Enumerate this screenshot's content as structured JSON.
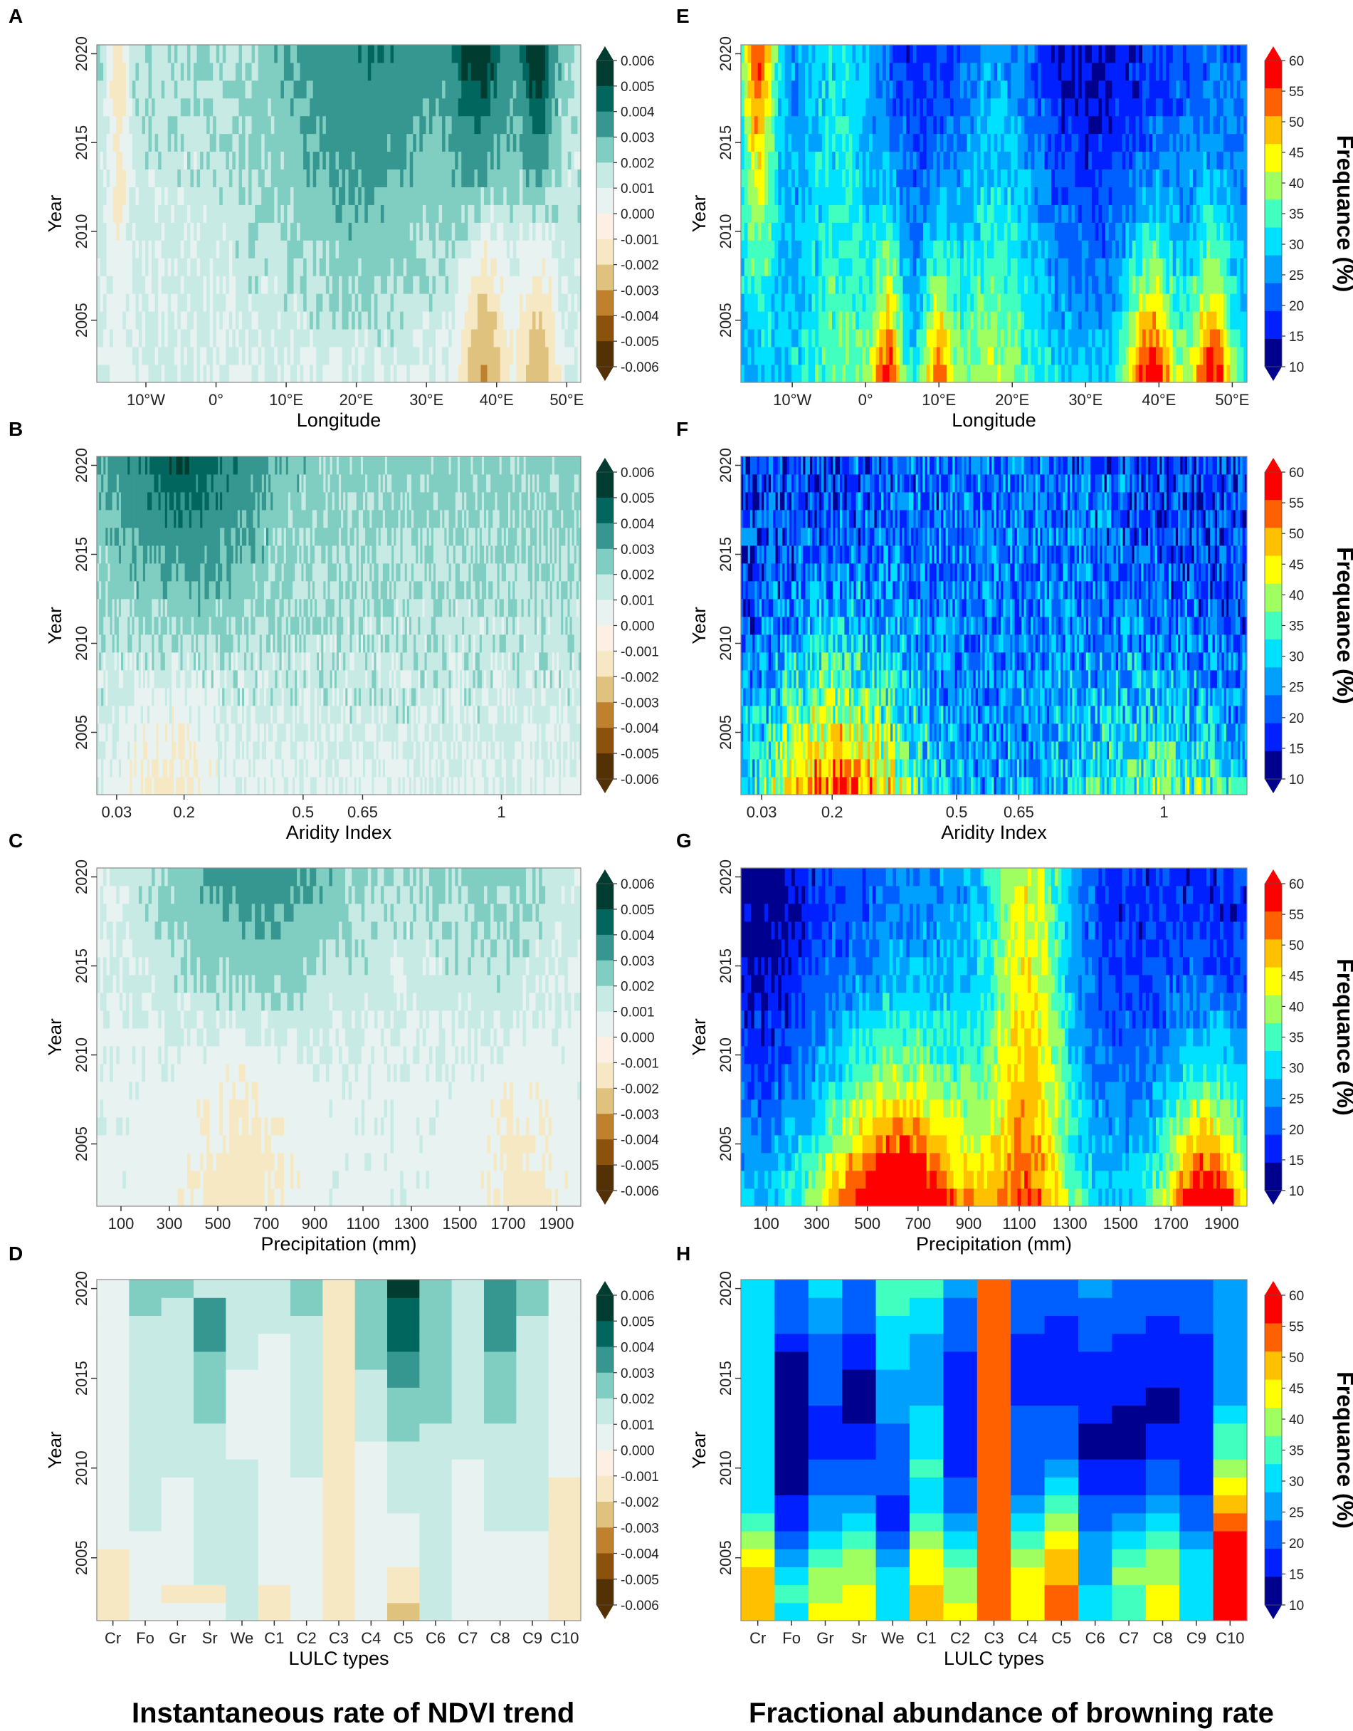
{
  "colors": {
    "ndvi_scale": [
      "#543005",
      "#8c510a",
      "#bf812d",
      "#dfc27d",
      "#f6e8c3",
      "#fbf0e3",
      "#e8f3f1",
      "#c7eae5",
      "#80cdc1",
      "#35978f",
      "#01665e",
      "#003c30"
    ],
    "jet_scale": [
      "#00008f",
      "#0020ff",
      "#0060ff",
      "#00a0ff",
      "#00e0ff",
      "#40ffbf",
      "#a0ff60",
      "#ffff00",
      "#ffc000",
      "#ff6000",
      "#ff0000"
    ]
  },
  "footer": {
    "left_title": "Instantaneous rate of NDVI trend",
    "right_title": "Fractional abundance of browning rate"
  },
  "chart_data": [
    {
      "panel": "A",
      "type": "heatmap",
      "colormap": "ndvi",
      "xlabel": "Longitude",
      "ylabel": "Year",
      "xticks": [
        "10°W",
        "0°",
        "10°E",
        "20°E",
        "30°E",
        "40°E",
        "50°E"
      ],
      "xtick_values": [
        -10,
        0,
        10,
        20,
        30,
        40,
        50
      ],
      "xlim": [
        -17,
        52
      ],
      "yticks": [
        "2005",
        "2010",
        "2015",
        "2020"
      ],
      "ylim": [
        2001.5,
        2020.5
      ],
      "colorbar_label": "",
      "colorbar_ticks": [
        "0.006",
        "0.005",
        "0.004",
        "0.003",
        "0.002",
        "0.001",
        "0.000",
        "-0.001",
        "-0.002",
        "-0.003",
        "-0.004",
        "-0.005",
        "-0.006"
      ],
      "hotspots": [
        {
          "x": -14,
          "y_from": 2014,
          "y_to": 2020,
          "value": -0.002
        },
        {
          "x": 38,
          "y_from": 2015,
          "y_to": 2020,
          "value": 0.005
        },
        {
          "x": 45,
          "y_from": 2014,
          "y_to": 2020,
          "value": 0.006
        },
        {
          "x": 38,
          "y_from": 2002,
          "y_to": 2006,
          "value": -0.004
        },
        {
          "x": 45,
          "y_from": 2002,
          "y_to": 2006,
          "value": -0.004
        }
      ]
    },
    {
      "panel": "B",
      "type": "heatmap",
      "colormap": "ndvi",
      "xlabel": "Aridity Index",
      "ylabel": "Year",
      "xticks": [
        "0.03",
        "0.2",
        "0.5",
        "0.65",
        "1"
      ],
      "xtick_values": [
        0.03,
        0.2,
        0.5,
        0.65,
        1
      ],
      "xlim": [
        -0.02,
        1.2
      ],
      "yticks": [
        "2005",
        "2010",
        "2015",
        "2020"
      ],
      "ylim": [
        2001.5,
        2020.5
      ],
      "colorbar_label": "",
      "colorbar_ticks": [
        "0.006",
        "0.005",
        "0.004",
        "0.003",
        "0.002",
        "0.001",
        "0.000",
        "-0.001",
        "-0.002",
        "-0.003",
        "-0.004",
        "-0.005",
        "-0.006"
      ]
    },
    {
      "panel": "C",
      "type": "heatmap",
      "colormap": "ndvi",
      "xlabel": "Precipitation (mm)",
      "ylabel": "Year",
      "xticks": [
        "100",
        "300",
        "500",
        "700",
        "900",
        "1100",
        "1300",
        "1500",
        "1700",
        "1900"
      ],
      "xtick_values": [
        100,
        300,
        500,
        700,
        900,
        1100,
        1300,
        1500,
        1700,
        1900
      ],
      "xlim": [
        0,
        2000
      ],
      "yticks": [
        "2005",
        "2010",
        "2015",
        "2020"
      ],
      "ylim": [
        2001.5,
        2020.5
      ],
      "colorbar_label": "",
      "colorbar_ticks": [
        "0.006",
        "0.005",
        "0.004",
        "0.003",
        "0.002",
        "0.001",
        "0.000",
        "-0.001",
        "-0.002",
        "-0.003",
        "-0.004",
        "-0.005",
        "-0.006"
      ]
    },
    {
      "panel": "D",
      "type": "heatmap",
      "colormap": "ndvi",
      "xlabel": "LULC types",
      "ylabel": "Year",
      "xticks": [
        "Cr",
        "Fo",
        "Gr",
        "Sr",
        "We",
        "C1",
        "C2",
        "C3",
        "C4",
        "C5",
        "C6",
        "C7",
        "C8",
        "C9",
        "C10"
      ],
      "yticks": [
        "2005",
        "2010",
        "2015",
        "2020"
      ],
      "ylim": [
        2001.5,
        2020.5
      ],
      "colorbar_label": "",
      "colorbar_ticks": [
        "0.006",
        "0.005",
        "0.004",
        "0.003",
        "0.002",
        "0.001",
        "0.000",
        "-0.001",
        "-0.002",
        "-0.003",
        "-0.004",
        "-0.005",
        "-0.006"
      ],
      "category_columns": {
        "Cr": [
          -0.001,
          -0.001,
          -0.001,
          -0.001,
          0.0005,
          0.0005,
          0.0005,
          0.0005,
          0.0005,
          0.0005,
          0.0005,
          0.0005,
          0.0005,
          0.0005,
          0.0005,
          0.0005,
          0.0005,
          0.0005,
          0.0005
        ],
        "Fo": [
          0.0005,
          0.0005,
          0.0005,
          0.0005,
          0.0005,
          0.001,
          0.001,
          0.001,
          0.001,
          0.001,
          0.001,
          0.001,
          0.001,
          0.001,
          0.001,
          0.001,
          0.001,
          0.002,
          0.002
        ],
        "Gr": [
          0.0005,
          -0.0005,
          0.0005,
          0.0005,
          0.0005,
          0.0005,
          0.0005,
          0.0005,
          0.001,
          0.001,
          0.001,
          0.001,
          0.001,
          0.001,
          0.001,
          0.001,
          0.001,
          0.001,
          0.002
        ],
        "Sr": [
          0.0005,
          -0.0005,
          0.001,
          0.001,
          0.001,
          0.001,
          0.001,
          0.001,
          0.001,
          0.001,
          0.001,
          0.002,
          0.002,
          0.002,
          0.002,
          0.003,
          0.003,
          0.003,
          0.001
        ],
        "We": [
          0.001,
          0.001,
          0.001,
          0.001,
          0.001,
          0.001,
          0.001,
          0.001,
          0.001,
          0.0005,
          0.0005,
          0.0005,
          0.0005,
          0.0005,
          0.001,
          0.001,
          0.001,
          0.001,
          0.001
        ],
        "C1": [
          -0.0005,
          -0.0005,
          0.0005,
          0.0005,
          0.0005,
          0.0005,
          0.0005,
          0.0005,
          0.0005,
          0.0005,
          0.0005,
          0.0005,
          0.0005,
          0.0005,
          0.0005,
          0.0005,
          0.001,
          0.001,
          0.001
        ],
        "C2": [
          0.0005,
          0.0005,
          0.0005,
          0.0005,
          0.0005,
          0.0005,
          0.0005,
          0.0005,
          0.001,
          0.001,
          0.001,
          0.001,
          0.001,
          0.001,
          0.001,
          0.001,
          0.001,
          0.002,
          0.002
        ],
        "C3": [
          -0.0005,
          -0.0005,
          -0.0005,
          -0.0005,
          -0.0005,
          -0.0005,
          -0.0005,
          -0.0005,
          -0.0005,
          -0.0005,
          -0.0005,
          -0.0005,
          -0.0005,
          -0.0005,
          -0.0005,
          -0.0005,
          -0.0005,
          -0.0005,
          -0.0005
        ],
        "C4": [
          0.0005,
          0.0005,
          0.0005,
          0.0005,
          0.0005,
          0.0005,
          0.0005,
          0.0005,
          0.0005,
          0.0005,
          0.001,
          0.001,
          0.001,
          0.001,
          0.002,
          0.002,
          0.002,
          0.002,
          0.002
        ],
        "C5": [
          -0.002,
          -0.001,
          -0.001,
          0.0005,
          0.0005,
          0.0005,
          0.001,
          0.001,
          0.001,
          0.001,
          0.002,
          0.002,
          0.002,
          0.003,
          0.003,
          0.004,
          0.004,
          0.004,
          0.005
        ],
        "C6": [
          0.001,
          0.001,
          0.001,
          0.001,
          0.001,
          0.001,
          0.001,
          0.001,
          0.001,
          0.001,
          0.001,
          0.002,
          0.002,
          0.002,
          0.002,
          0.002,
          0.002,
          0.002,
          0.002
        ],
        "C7": [
          0.0005,
          0.0005,
          0.0005,
          0.0005,
          0.0005,
          0.0005,
          0.0005,
          0.0005,
          0.0005,
          0.001,
          0.001,
          0.001,
          0.001,
          0.001,
          0.001,
          0.001,
          0.001,
          0.001,
          0.001
        ],
        "C8": [
          0.0005,
          0.0005,
          0.0005,
          0.0005,
          0.0005,
          0.001,
          0.001,
          0.001,
          0.001,
          0.001,
          0.001,
          0.002,
          0.002,
          0.002,
          0.002,
          0.003,
          0.003,
          0.003,
          0.003
        ],
        "C9": [
          0.0005,
          0.0005,
          0.0005,
          0.0005,
          0.0005,
          0.001,
          0.001,
          0.001,
          0.001,
          0.001,
          0.001,
          0.001,
          0.001,
          0.001,
          0.001,
          0.001,
          0.001,
          0.002,
          0.002
        ],
        "C10": [
          -0.0005,
          -0.0005,
          -0.0005,
          -0.0005,
          -0.0005,
          -0.0005,
          -0.0005,
          -0.0005,
          0.0005,
          0.0005,
          0.0005,
          0.0005,
          0.0005,
          0.0005,
          0.0005,
          0.0005,
          0.0005,
          0.0005,
          0.0005
        ]
      }
    },
    {
      "panel": "E",
      "type": "heatmap",
      "colormap": "jet",
      "xlabel": "Longitude",
      "ylabel": "Year",
      "xticks": [
        "10°W",
        "0°",
        "10°E",
        "20°E",
        "30°E",
        "40°E",
        "50°E"
      ],
      "xtick_values": [
        -10,
        0,
        10,
        20,
        30,
        40,
        50
      ],
      "xlim": [
        -17,
        52
      ],
      "yticks": [
        "2005",
        "2010",
        "2015",
        "2020"
      ],
      "ylim": [
        2001.5,
        2020.5
      ],
      "colorbar_label": "Frequance (%)",
      "colorbar_ticks": [
        "60",
        "55",
        "50",
        "45",
        "40",
        "35",
        "30",
        "25",
        "20",
        "15",
        "10"
      ],
      "hotspots": [
        {
          "x": -14,
          "y_from": 2013,
          "y_to": 2020,
          "value": 60
        },
        {
          "x": 3,
          "y_from": 2002,
          "y_to": 2007,
          "value": 55
        },
        {
          "x": 40,
          "y_from": 2002,
          "y_to": 2009,
          "value": 60
        },
        {
          "x": 47,
          "y_from": 2002,
          "y_to": 2006,
          "value": 60
        }
      ]
    },
    {
      "panel": "F",
      "type": "heatmap",
      "colormap": "jet",
      "xlabel": "Aridity Index",
      "ylabel": "Year",
      "xticks": [
        "0.03",
        "0.2",
        "0.5",
        "0.65",
        "1"
      ],
      "xtick_values": [
        0.03,
        0.2,
        0.5,
        0.65,
        1
      ],
      "xlim": [
        -0.02,
        1.2
      ],
      "yticks": [
        "2005",
        "2010",
        "2015",
        "2020"
      ],
      "ylim": [
        2001.5,
        2020.5
      ],
      "colorbar_label": "Frequance (%)",
      "colorbar_ticks": [
        "60",
        "55",
        "50",
        "45",
        "40",
        "35",
        "30",
        "25",
        "20",
        "15",
        "10"
      ]
    },
    {
      "panel": "G",
      "type": "heatmap",
      "colormap": "jet",
      "xlabel": "Precipitation (mm)",
      "ylabel": "Year",
      "xticks": [
        "100",
        "300",
        "500",
        "700",
        "900",
        "1100",
        "1300",
        "1500",
        "1700",
        "1900"
      ],
      "xtick_values": [
        100,
        300,
        500,
        700,
        900,
        1100,
        1300,
        1500,
        1700,
        1900
      ],
      "xlim": [
        0,
        2000
      ],
      "yticks": [
        "2005",
        "2010",
        "2015",
        "2020"
      ],
      "ylim": [
        2001.5,
        2020.5
      ],
      "colorbar_label": "Frequance (%)",
      "colorbar_ticks": [
        "60",
        "55",
        "50",
        "45",
        "40",
        "35",
        "30",
        "25",
        "20",
        "15",
        "10"
      ]
    },
    {
      "panel": "H",
      "type": "heatmap",
      "colormap": "jet",
      "xlabel": "LULC types",
      "ylabel": "Year",
      "xticks": [
        "Cr",
        "Fo",
        "Gr",
        "Sr",
        "We",
        "C1",
        "C2",
        "C3",
        "C4",
        "C5",
        "C6",
        "C7",
        "C8",
        "C9",
        "C10"
      ],
      "yticks": [
        "2005",
        "2010",
        "2015",
        "2020"
      ],
      "ylim": [
        2001.5,
        2020.5
      ],
      "colorbar_label": "Frequance (%)",
      "colorbar_ticks": [
        "60",
        "55",
        "50",
        "45",
        "40",
        "35",
        "30",
        "25",
        "20",
        "15",
        "10"
      ],
      "category_columns": {
        "Cr": [
          50,
          50,
          50,
          45,
          40,
          35,
          30,
          30,
          30,
          30,
          30,
          30,
          30,
          30,
          30,
          30,
          30,
          30,
          30
        ],
        "Fo": [
          30,
          35,
          30,
          25,
          20,
          15,
          15,
          10,
          10,
          10,
          10,
          10,
          10,
          10,
          10,
          15,
          20,
          20,
          20
        ],
        "Gr": [
          45,
          40,
          40,
          35,
          30,
          25,
          25,
          20,
          20,
          15,
          15,
          15,
          20,
          20,
          20,
          20,
          25,
          25,
          30
        ],
        "Sr": [
          45,
          45,
          40,
          40,
          35,
          30,
          25,
          20,
          20,
          15,
          15,
          10,
          10,
          10,
          15,
          15,
          20,
          20,
          20
        ],
        "We": [
          30,
          30,
          30,
          25,
          20,
          15,
          15,
          20,
          20,
          20,
          20,
          25,
          25,
          25,
          30,
          30,
          30,
          35,
          35
        ],
        "C1": [
          50,
          50,
          45,
          45,
          40,
          35,
          30,
          30,
          35,
          30,
          30,
          30,
          25,
          25,
          25,
          25,
          30,
          30,
          35
        ],
        "C2": [
          45,
          40,
          40,
          35,
          30,
          25,
          20,
          20,
          15,
          15,
          15,
          15,
          15,
          15,
          15,
          20,
          20,
          20,
          25
        ],
        "C3": [
          55,
          55,
          55,
          55,
          55,
          55,
          55,
          55,
          55,
          55,
          55,
          55,
          55,
          55,
          55,
          55,
          55,
          55,
          55
        ],
        "C4": [
          45,
          45,
          45,
          40,
          35,
          30,
          25,
          20,
          20,
          20,
          20,
          20,
          15,
          15,
          15,
          15,
          20,
          20,
          20
        ],
        "C5": [
          55,
          55,
          50,
          50,
          45,
          40,
          35,
          30,
          25,
          20,
          20,
          20,
          15,
          15,
          15,
          15,
          15,
          20,
          20
        ],
        "C6": [
          30,
          30,
          25,
          25,
          25,
          20,
          20,
          15,
          15,
          10,
          10,
          15,
          15,
          15,
          15,
          20,
          20,
          20,
          25
        ],
        "C7": [
          35,
          35,
          40,
          35,
          30,
          25,
          20,
          15,
          15,
          10,
          10,
          10,
          15,
          15,
          15,
          15,
          20,
          20,
          20
        ],
        "C8": [
          45,
          45,
          40,
          40,
          35,
          30,
          25,
          20,
          20,
          15,
          15,
          10,
          10,
          15,
          15,
          15,
          15,
          20,
          20
        ],
        "C9": [
          30,
          30,
          30,
          30,
          25,
          20,
          20,
          15,
          15,
          15,
          15,
          15,
          15,
          15,
          15,
          15,
          20,
          20,
          20
        ],
        "C10": [
          60,
          60,
          60,
          60,
          60,
          55,
          50,
          45,
          40,
          35,
          35,
          30,
          25,
          25,
          25,
          25,
          25,
          25,
          25
        ]
      }
    }
  ]
}
